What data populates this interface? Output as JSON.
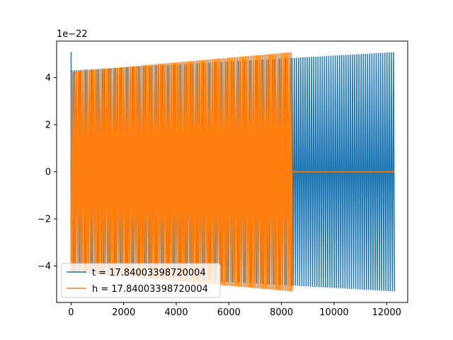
{
  "chart_data": {
    "type": "line",
    "title": "",
    "xlabel": "",
    "ylabel": "",
    "y_offset_label": "1e−22",
    "xlim": [
      -550,
      12800
    ],
    "ylim": [
      -5.55,
      5.55
    ],
    "x_ticks": [
      0,
      2000,
      4000,
      6000,
      8000,
      10000,
      12000
    ],
    "x_tick_labels": [
      "0",
      "2000",
      "4000",
      "6000",
      "8000",
      "10000",
      "12000"
    ],
    "y_ticks": [
      -4,
      -2,
      0,
      2,
      4
    ],
    "y_tick_labels": [
      "−4",
      "−2",
      "0",
      "2",
      "4"
    ],
    "grid": false,
    "legend_position": "lower-left",
    "series": [
      {
        "name": "t = 17.84003398720004",
        "color": "#1f77b4",
        "kind": "oscillation",
        "x_start": 0,
        "x_end": 12300,
        "amplitude_start": 4.3,
        "amplitude_end": 5.08,
        "initial_spike": 5.08,
        "cycles": 150
      },
      {
        "name": "h = 17.84003398720004",
        "color": "#ff7f0e",
        "kind": "oscillation",
        "x_start": 0,
        "x_end": 8400,
        "amplitude_start": 4.25,
        "amplitude_end": 5.08,
        "flat_after_x": 8400,
        "flat_until_x": 12300,
        "flat_value": 0,
        "cycles": 140
      }
    ]
  }
}
